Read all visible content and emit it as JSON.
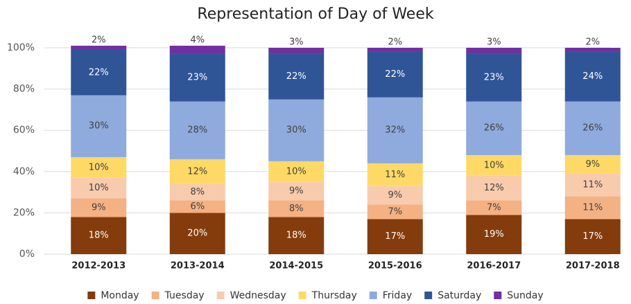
{
  "chart_data": {
    "type": "stacked_bar",
    "title": "Representation of Day of Week",
    "categories": [
      "2012-2013",
      "2013-2014",
      "2014-2015",
      "2015-2016",
      "2016-2017",
      "2017-2018"
    ],
    "ylim": [
      0,
      100
    ],
    "yticks": [
      {
        "value": 0,
        "label": "0%"
      },
      {
        "value": 20,
        "label": "20%"
      },
      {
        "value": 40,
        "label": "40%"
      },
      {
        "value": 60,
        "label": "60%"
      },
      {
        "value": 80,
        "label": "80%"
      },
      {
        "value": 100,
        "label": "100%"
      }
    ],
    "grid": true,
    "legend": "bottom",
    "series": [
      {
        "name": "Monday",
        "color": "#843c0c",
        "values": [
          18,
          20,
          18,
          17,
          19,
          17
        ],
        "value_labels": [
          "18%",
          "20%",
          "18%",
          "17%",
          "19%",
          "17%"
        ]
      },
      {
        "name": "Tuesday",
        "color": "#f4b183",
        "values": [
          9,
          6,
          8,
          7,
          7,
          11
        ],
        "value_labels": [
          "9%",
          "6%",
          "8%",
          "7%",
          "7%",
          "11%"
        ]
      },
      {
        "name": "Wednesday",
        "color": "#f8cbad",
        "values": [
          10,
          8,
          9,
          9,
          12,
          11
        ],
        "value_labels": [
          "10%",
          "8%",
          "9%",
          "9%",
          "12%",
          "11%"
        ]
      },
      {
        "name": "Thursday",
        "color": "#ffd966",
        "values": [
          10,
          12,
          10,
          11,
          10,
          9
        ],
        "value_labels": [
          "10%",
          "12%",
          "10%",
          "11%",
          "10%",
          "9%"
        ]
      },
      {
        "name": "Friday",
        "color": "#8faadc",
        "values": [
          30,
          28,
          30,
          32,
          26,
          26
        ],
        "value_labels": [
          "30%",
          "28%",
          "30%",
          "32%",
          "26%",
          "26%"
        ]
      },
      {
        "name": "Saturday",
        "color": "#2f5597",
        "values": [
          22,
          23,
          22,
          22,
          23,
          24
        ],
        "value_labels": [
          "22%",
          "23%",
          "22%",
          "22%",
          "23%",
          "24%"
        ]
      },
      {
        "name": "Sunday",
        "color": "#7030a0",
        "values": [
          2,
          4,
          3,
          2,
          3,
          2
        ],
        "value_labels": [
          "2%",
          "4%",
          "3%",
          "2%",
          "3%",
          "2%"
        ]
      }
    ]
  }
}
